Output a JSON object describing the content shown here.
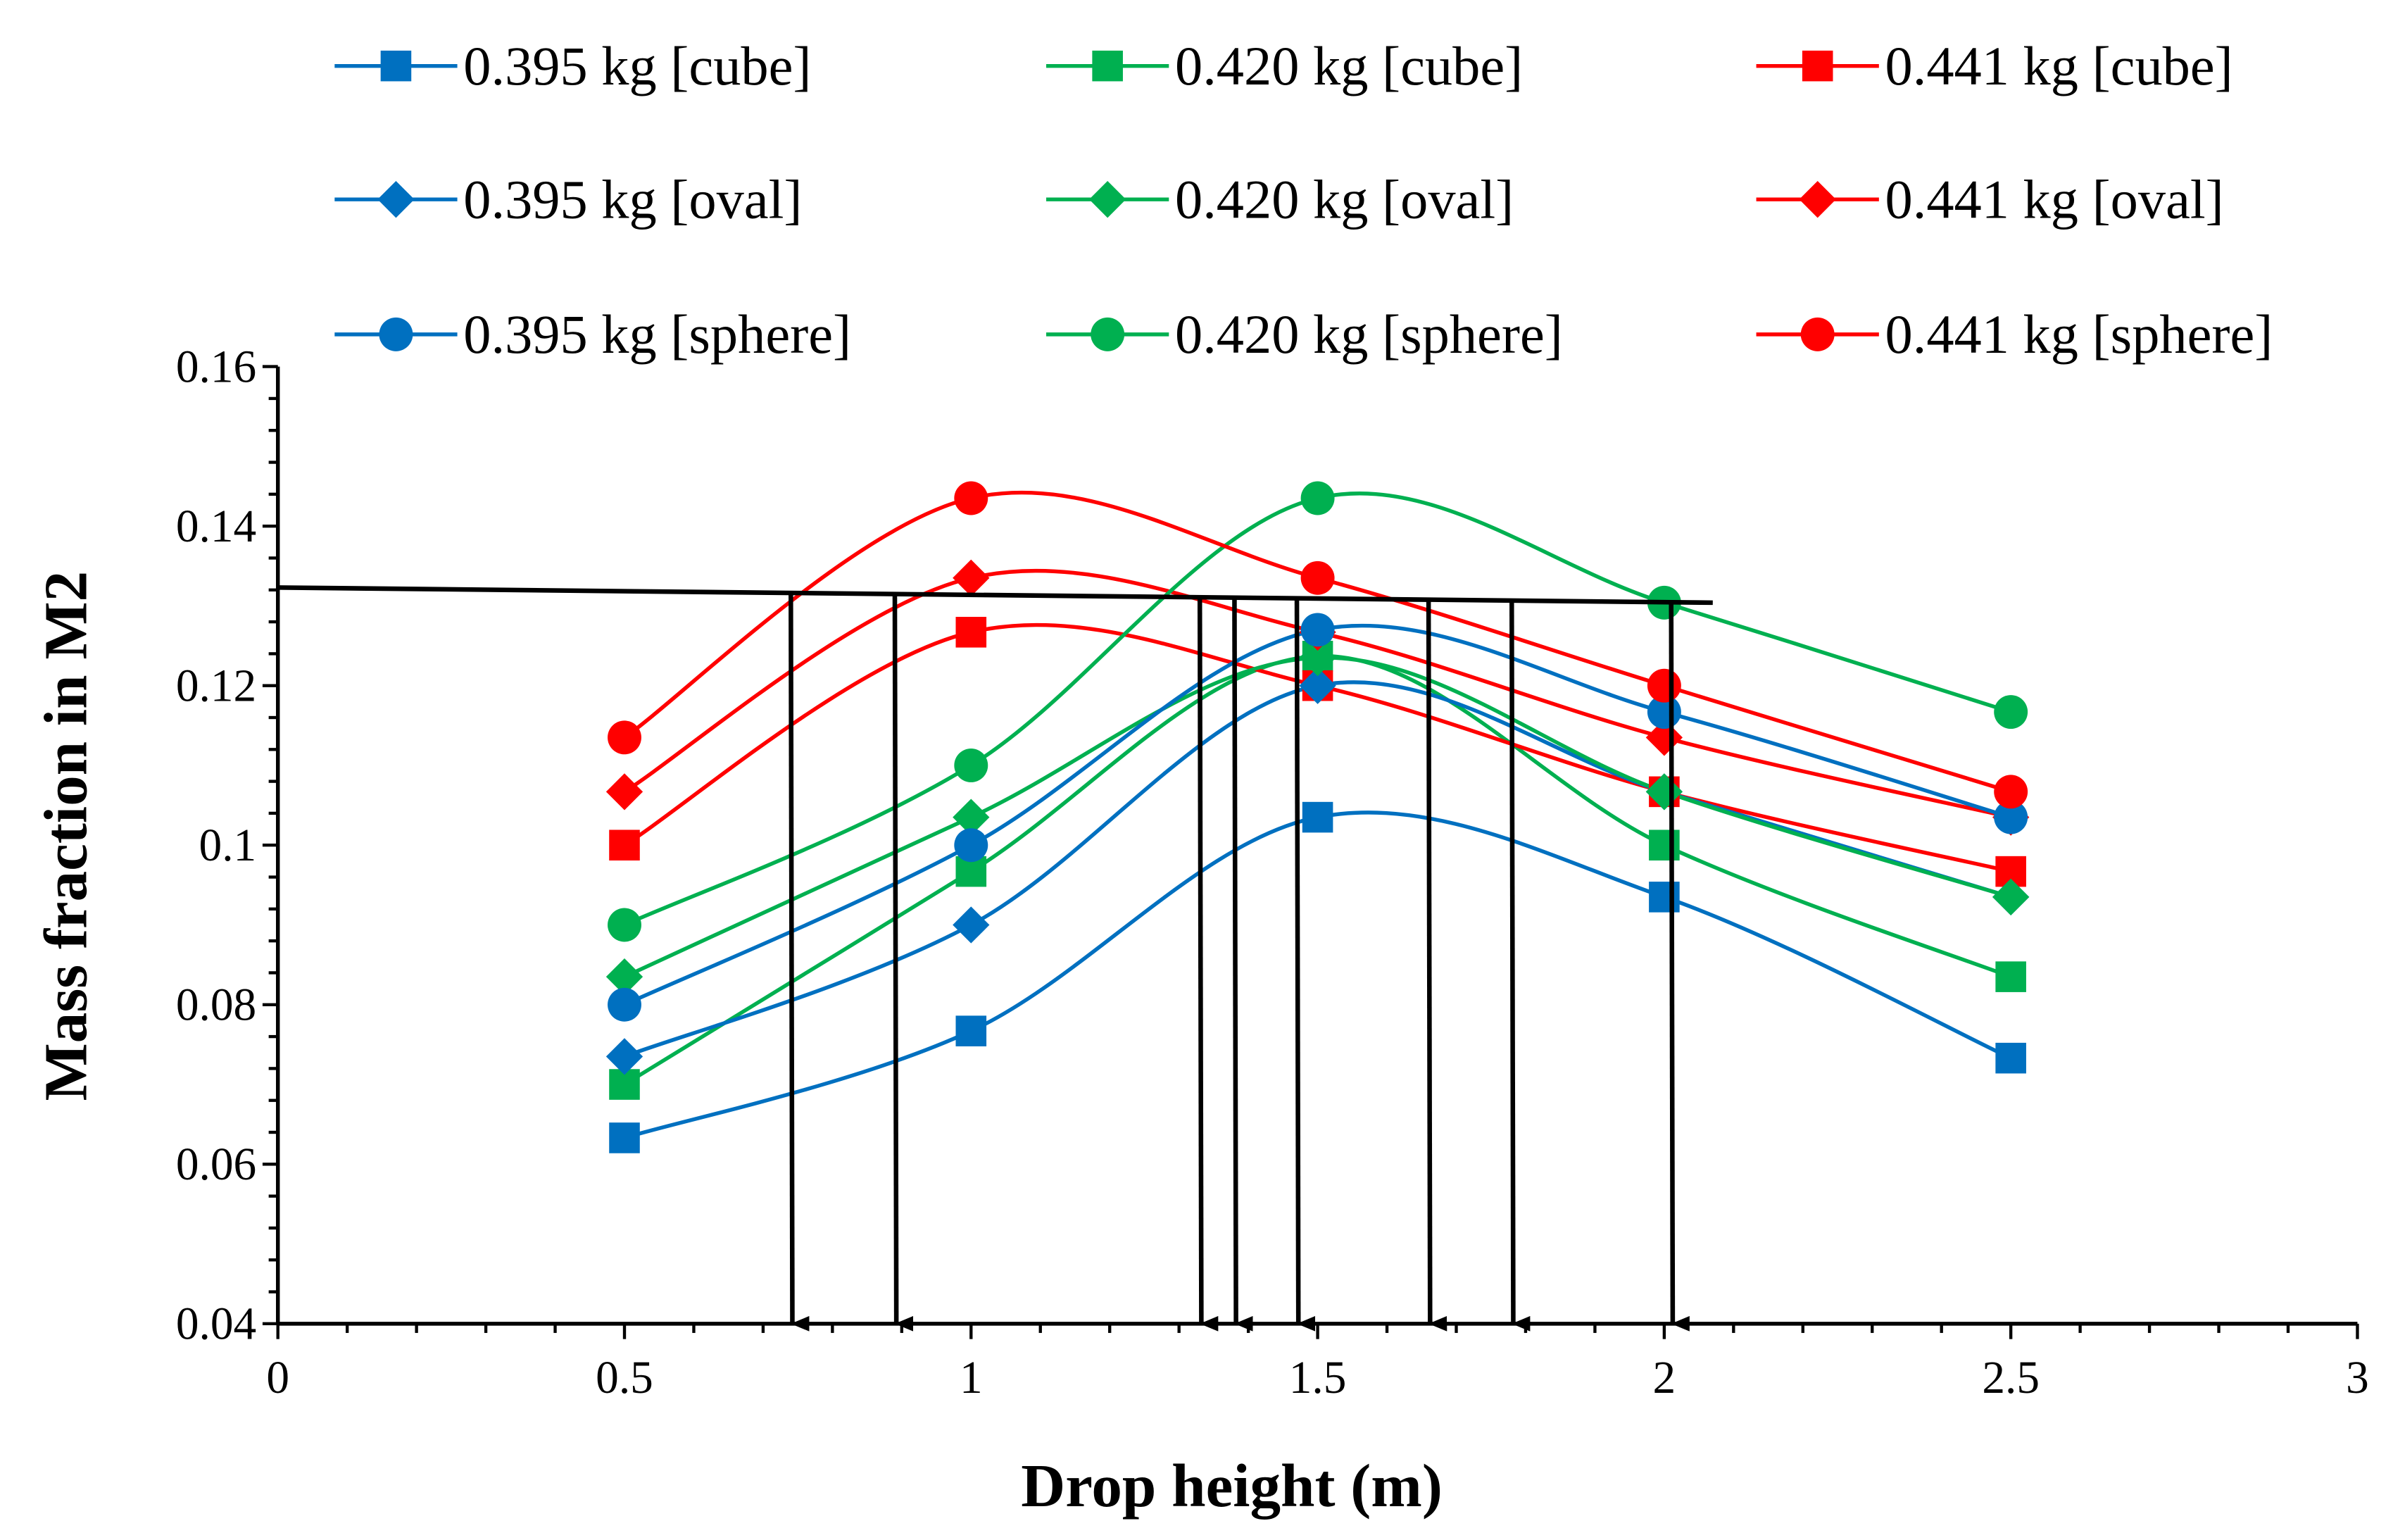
{
  "chart_data": {
    "type": "line",
    "title": "",
    "xlabel": "Drop height (m)",
    "ylabel": "Mass fraction in M2",
    "xlim": [
      0,
      3
    ],
    "ylim": [
      0.04,
      0.16
    ],
    "xticks": [
      "0",
      "0.5",
      "1",
      "1.5",
      "2",
      "2.5",
      "3"
    ],
    "xtick_values": [
      0,
      0.5,
      1,
      1.5,
      2,
      2.5,
      3
    ],
    "yticks": [
      "0.04",
      "0.06",
      "0.08",
      "0.1",
      "0.12",
      "0.14",
      "0.16"
    ],
    "ytick_values": [
      0.04,
      0.06,
      0.08,
      0.1,
      0.12,
      0.14,
      0.16
    ],
    "grid": false,
    "legend_position": "top",
    "smooth": true,
    "x": [
      0.5,
      1,
      1.5,
      2,
      2.5
    ],
    "series": [
      {
        "name": "0.395 kg [cube]",
        "color": "#0070C0",
        "marker": "square",
        "values": [
          0.0633,
          0.0767,
          0.1035,
          0.0935,
          0.0733
        ]
      },
      {
        "name": "0.420 kg [cube]",
        "color": "#00B050",
        "marker": "square",
        "values": [
          0.07,
          0.0967,
          0.1237,
          0.1,
          0.0835
        ]
      },
      {
        "name": "0.441 kg [cube]",
        "color": "#FF0000",
        "marker": "square",
        "values": [
          0.1,
          0.1267,
          0.12,
          0.1067,
          0.0967
        ]
      },
      {
        "name": "0.395 kg [oval]",
        "color": "#0070C0",
        "marker": "diamond",
        "values": [
          0.0735,
          0.09,
          0.12,
          0.1067,
          0.0935
        ]
      },
      {
        "name": "0.420 kg [oval]",
        "color": "#00B050",
        "marker": "diamond",
        "values": [
          0.0835,
          0.1035,
          0.1235,
          0.1067,
          0.0935
        ]
      },
      {
        "name": "0.441 kg [oval]",
        "color": "#FF0000",
        "marker": "diamond",
        "values": [
          0.1067,
          0.1335,
          0.1267,
          0.1135,
          0.1035
        ]
      },
      {
        "name": "0.395 kg [sphere]",
        "color": "#0070C0",
        "marker": "circle",
        "values": [
          0.08,
          0.1,
          0.127,
          0.1167,
          0.1035
        ]
      },
      {
        "name": "0.420 kg [sphere]",
        "color": "#00B050",
        "marker": "circle",
        "values": [
          0.09,
          0.11,
          0.1435,
          0.1304,
          0.1167
        ]
      },
      {
        "name": "0.441 kg [sphere]",
        "color": "#FF0000",
        "marker": "circle",
        "values": [
          0.1135,
          0.1435,
          0.1335,
          0.12,
          0.1067
        ]
      }
    ],
    "annotations": {
      "threshold_line": {
        "x": [
          0,
          2.07
        ],
        "y": [
          0.1323,
          0.1304
        ],
        "color": "#000000"
      },
      "arrows_x": [
        0.74,
        0.89,
        1.33,
        1.38,
        1.47,
        1.66,
        1.78,
        2.01
      ]
    }
  }
}
